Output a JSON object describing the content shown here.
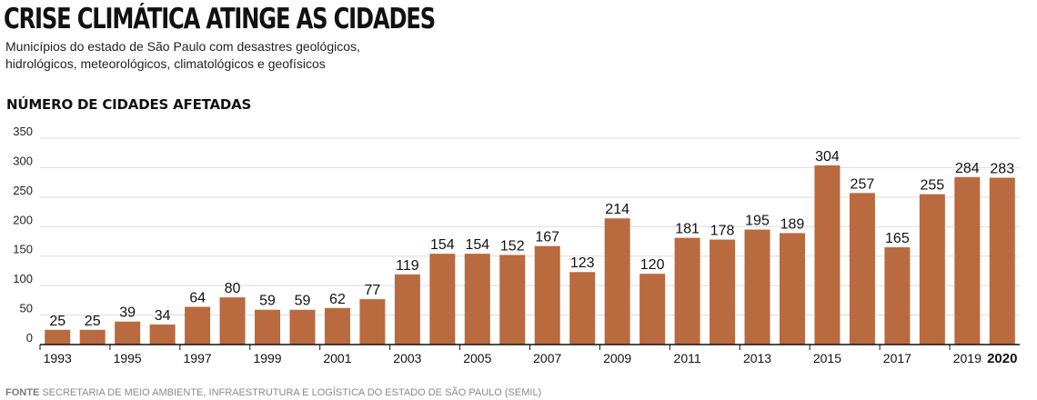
{
  "header": {
    "title": "CRISE CLIMÁTICA ATINGE AS CIDADES",
    "subtitle_line1": "Municípios do estado de São Paulo com desastres geológicos,",
    "subtitle_line2": "hidrológicos, meteorológicos, climatológicos e geofísicos"
  },
  "footer": {
    "source_label": "FONTE",
    "source_text": "SECRETARIA DE MEIO AMBIENTE, INFRAESTRUTURA E LOGÍSTICA DO ESTADO DE SÃO PAULO (SEMIL)"
  },
  "colors": {
    "bar": "#b96a3f",
    "grid": "#dcdcdc",
    "axis": "#111111"
  },
  "chart_data": {
    "type": "bar",
    "title": "CRISE CLIMÁTICA ATINGE AS CIDADES",
    "subtitle": "Municípios do estado de São Paulo com desastres geológicos, hidrológicos, meteorológicos, climatológicos e geofísicos",
    "ylabel": "NÚMERO DE CIDADES AFETADAS",
    "xlabel": "",
    "categories": [
      "1993",
      "1994",
      "1995",
      "1996",
      "1997",
      "1998",
      "1999",
      "2000",
      "2001",
      "2002",
      "2003",
      "2004",
      "2005",
      "2006",
      "2007",
      "2008",
      "2009",
      "2010",
      "2011",
      "2012",
      "2013",
      "2014",
      "2015",
      "2016",
      "2017",
      "2018",
      "2019",
      "2020"
    ],
    "values": [
      25,
      25,
      39,
      34,
      64,
      80,
      59,
      59,
      62,
      77,
      119,
      154,
      154,
      152,
      167,
      123,
      214,
      120,
      181,
      178,
      195,
      189,
      304,
      257,
      165,
      255,
      284,
      283
    ],
    "ylim": [
      0,
      350
    ],
    "yticks": [
      0,
      50,
      100,
      150,
      200,
      250,
      300,
      350
    ],
    "xtick_labels": [
      "1993",
      "1995",
      "1997",
      "1999",
      "2001",
      "2003",
      "2005",
      "2007",
      "2009",
      "2011",
      "2013",
      "2015",
      "2017",
      "2019",
      "2020"
    ],
    "data_labels": true,
    "grid": true,
    "legend": "none"
  }
}
